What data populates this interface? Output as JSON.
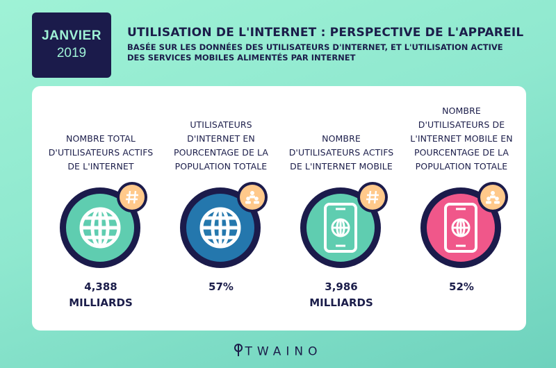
{
  "header": {
    "date_month": "JANVIER",
    "date_year": "2019",
    "title": "UTILISATION DE L'INTERNET : PERSPECTIVE DE L'APPAREIL",
    "subtitle_line1": "BASÉE SUR LES DONNÉES DES UTILISATEURS D'INTERNET, ET L'UTILISATION ACTIVE",
    "subtitle_line2": "DES SERVICES MOBILES ALIMENTÉS PAR INTERNET"
  },
  "stats": [
    {
      "label_lines": [
        "NOMBRE TOTAL",
        "D'UTILISATEURS ACTIFS",
        "DE L'INTERNET"
      ],
      "icon": "globe-icon",
      "badge_icon": "hash-icon",
      "color": "#5fcdb0",
      "value_line1": "4,388",
      "value_line2": "MILLIARDS"
    },
    {
      "label_lines": [
        "UTILISATEURS",
        "D'INTERNET EN",
        "POURCENTAGE DE LA",
        "POPULATION TOTALE"
      ],
      "icon": "globe-icon",
      "badge_icon": "people-icon",
      "color": "#2477ad",
      "value_line1": "57%",
      "value_line2": ""
    },
    {
      "label_lines": [
        "NOMBRE",
        "D'UTILISATEURS ACTIFS",
        "DE L'INTERNET MOBILE"
      ],
      "icon": "mobile-globe-icon",
      "badge_icon": "hash-icon",
      "color": "#5fcdb0",
      "value_line1": "3,986",
      "value_line2": "MILLIARDS"
    },
    {
      "label_lines": [
        "NOMBRE",
        "D'UTILISATEURS DE",
        "L'INTERNET MOBILE EN",
        "POURCENTAGE DE LA",
        "POPULATION TOTALE"
      ],
      "icon": "mobile-globe-icon",
      "badge_icon": "people-icon",
      "color": "#f0578a",
      "value_line1": "52%",
      "value_line2": ""
    }
  ],
  "footer": {
    "brand": "TWAINO"
  }
}
